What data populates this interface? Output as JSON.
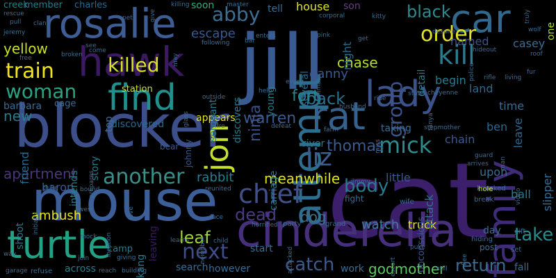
{
  "background": "#000000",
  "palette": [
    "#440154",
    "#3b528b",
    "#21908d",
    "#5dc863",
    "#fde725",
    "#482878",
    "#31688e",
    "#35b779"
  ],
  "words": [
    {
      "text": "cat",
      "color": "#3b1f6b"
    },
    {
      "text": "jill",
      "color": "#3a5a92"
    },
    {
      "text": "blocker",
      "color": "#3c4f8a"
    },
    {
      "text": "mouse",
      "color": "#3d5f99"
    },
    {
      "text": "cinderella",
      "color": "#46307c"
    },
    {
      "text": "rosalie",
      "color": "#3e5d94"
    },
    {
      "text": "hawk",
      "color": "#3b1a63"
    },
    {
      "text": "car",
      "color": "#31688e"
    },
    {
      "text": "family",
      "color": "#3f2c78"
    },
    {
      "text": "turtle",
      "color": "#23a184"
    },
    {
      "text": "find",
      "color": "#21908d"
    },
    {
      "text": "rat",
      "color": "#35618f"
    },
    {
      "text": "lady",
      "color": "#3b528b"
    },
    {
      "text": "attempt",
      "color": "#2f6d8e"
    },
    {
      "text": "jon",
      "color": "#c4df2a"
    },
    {
      "text": "kill",
      "color": "#2c7a8e"
    },
    {
      "text": "order",
      "color": "#e0e32a"
    },
    {
      "text": "train",
      "color": "#f1e51d"
    },
    {
      "text": "woman",
      "color": "#2aa383"
    },
    {
      "text": "killed",
      "color": "#d9e22a"
    },
    {
      "text": "abby",
      "color": "#3e6e92"
    },
    {
      "text": "another",
      "color": "#3b8f8a"
    },
    {
      "text": "mick",
      "color": "#2f8b8d"
    },
    {
      "text": "chief",
      "color": "#42508a"
    },
    {
      "text": "liz",
      "color": "#3a5f90"
    },
    {
      "text": "next",
      "color": "#3e4c88"
    },
    {
      "text": "dead",
      "color": "#4b3b7e"
    },
    {
      "text": "leaf",
      "color": "#9fd43c"
    },
    {
      "text": "catch",
      "color": "#3b5a8e"
    },
    {
      "text": "body",
      "color": "#2a7b8e"
    },
    {
      "text": "take",
      "color": "#2b8b8c"
    },
    {
      "text": "return",
      "color": "#3b6d93"
    },
    {
      "text": "godmother",
      "color": "#5dc863"
    },
    {
      "text": "group",
      "color": "#3b528b"
    },
    {
      "text": "black",
      "color": "#2d8a8d"
    },
    {
      "text": "back",
      "color": "#2b6f8c"
    },
    {
      "text": "ninja",
      "color": "#3a4f86"
    },
    {
      "text": "warren",
      "color": "#3b5a8e"
    },
    {
      "text": "fort",
      "color": "#23898e"
    },
    {
      "text": "thomas",
      "color": "#3b5a8e"
    },
    {
      "text": "apartment",
      "color": "#4a367b"
    },
    {
      "text": "rabbit",
      "color": "#27808e"
    },
    {
      "text": "meanwhile",
      "color": "#dfe318"
    },
    {
      "text": "yellow",
      "color": "#c8e020"
    },
    {
      "text": "new",
      "color": "#2b7b8e"
    },
    {
      "text": "chase",
      "color": "#b6de2b"
    },
    {
      "text": "danny",
      "color": "#3b5a8e"
    },
    {
      "text": "dog",
      "color": "#3a6f8e"
    },
    {
      "text": "watch",
      "color": "#3b7c9c"
    },
    {
      "text": "truck",
      "color": "#e6e419"
    },
    {
      "text": "baron",
      "color": "#3b5a8e"
    },
    {
      "text": "ambush",
      "color": "#e8e419"
    },
    {
      "text": "member",
      "color": "#2a7b8e"
    },
    {
      "text": "charles",
      "color": "#2a6a8e"
    },
    {
      "text": "creek",
      "color": "#2a7b8e"
    },
    {
      "text": "soon",
      "color": "#2cae80"
    },
    {
      "text": "house",
      "color": "#e0e32a"
    },
    {
      "text": "son",
      "color": "#6a3e85"
    },
    {
      "text": "tell",
      "color": "#3b6d93"
    },
    {
      "text": "escape",
      "color": "#3b5a8e"
    },
    {
      "text": "named",
      "color": "#3f508a"
    },
    {
      "text": "casey",
      "color": "#3b6d93"
    },
    {
      "text": "one",
      "color": "#a9db33"
    },
    {
      "text": "night",
      "color": "#2a6a8e"
    },
    {
      "text": "several",
      "color": "#2a6a8e"
    },
    {
      "text": "detail",
      "color": "#2a7b8e"
    },
    {
      "text": "begin",
      "color": "#2a7b8e"
    },
    {
      "text": "land",
      "color": "#2a6a8e"
    },
    {
      "text": "time",
      "color": "#3b6d93"
    },
    {
      "text": "leave",
      "color": "#31688e"
    },
    {
      "text": "ben",
      "color": "#2a6a8e"
    },
    {
      "text": "chain",
      "color": "#3b5a8e"
    },
    {
      "text": "station",
      "color": "#c8e020"
    },
    {
      "text": "cage",
      "color": "#3b6d93"
    },
    {
      "text": "barbara",
      "color": "#3b6d93"
    },
    {
      "text": "friend",
      "color": "#2a6a8e"
    },
    {
      "text": "story",
      "color": "#2a7b8e"
    },
    {
      "text": "discovered",
      "color": "#2a6a8e"
    },
    {
      "text": "appears",
      "color": "#e6e419"
    },
    {
      "text": "sergeant",
      "color": "#2a7b8e"
    },
    {
      "text": "discovers",
      "color": "#2a7b8e"
    },
    {
      "text": "young",
      "color": "#2a7b8e"
    },
    {
      "text": "taking",
      "color": "#3b6d93"
    },
    {
      "text": "river",
      "color": "#2a7b8e"
    },
    {
      "text": "attack",
      "color": "#3b6d93"
    },
    {
      "text": "upon",
      "color": "#3b6d93"
    },
    {
      "text": "slipper",
      "color": "#3b6d93"
    },
    {
      "text": "ball",
      "color": "#2a7b8e"
    },
    {
      "text": "little",
      "color": "#3b5a8e"
    },
    {
      "text": "shoot",
      "color": "#2a7b8e"
    },
    {
      "text": "top",
      "color": "#3b6d93"
    },
    {
      "text": "intends",
      "color": "#2a7b8e"
    },
    {
      "text": "johnny",
      "color": "#3b5a8e"
    },
    {
      "text": "bear",
      "color": "#3b5a8e"
    },
    {
      "text": "leaving",
      "color": "#3b1a63"
    },
    {
      "text": "carriage",
      "color": "#2a7b8e"
    },
    {
      "text": "however",
      "color": "#3b6d93"
    },
    {
      "text": "search",
      "color": "#3b6d93"
    },
    {
      "text": "start",
      "color": "#3b6d93"
    },
    {
      "text": "work",
      "color": "#3b6d93"
    },
    {
      "text": "fall",
      "color": "#3b6d93"
    },
    {
      "text": "day",
      "color": "#3b6d93"
    },
    {
      "text": "post",
      "color": "#3b6d93"
    },
    {
      "text": "across",
      "color": "#2a7b8e"
    },
    {
      "text": "camp",
      "color": "#2a7b8e"
    },
    {
      "text": "kang",
      "color": "#2a7b8e"
    },
    {
      "text": "unconscious",
      "color": "#3b5a8e"
    },
    {
      "text": "fight",
      "color": "#3b6d93"
    },
    {
      "text": "knocked",
      "color": "#3b6d93"
    },
    {
      "text": "break",
      "color": "#3b6d93"
    },
    {
      "text": "hole",
      "color": "#c8e020"
    },
    {
      "text": "gift",
      "color": "#3b6d93"
    },
    {
      "text": "set",
      "color": "#3b6d93"
    },
    {
      "text": "hiding",
      "color": "#3b6d93"
    },
    {
      "text": "wife",
      "color": "#3b6d93"
    },
    {
      "text": "grand",
      "color": "#3b6d93"
    },
    {
      "text": "party",
      "color": "#3b6d93"
    },
    {
      "text": "jimmy",
      "color": "#3b6d93"
    },
    {
      "text": "reunited",
      "color": "#3b6d93"
    },
    {
      "text": "face",
      "color": "#3b6d93"
    },
    {
      "text": "child",
      "color": "#3b6d93"
    },
    {
      "text": "horrified",
      "color": "#3b6d93"
    },
    {
      "text": "attacked",
      "color": "#3b6d93"
    },
    {
      "text": "escort",
      "color": "#3b6d93"
    },
    {
      "text": "puke",
      "color": "#3b6d93"
    },
    {
      "text": "flee",
      "color": "#3b6d93"
    },
    {
      "text": "still",
      "color": "#3b6d93"
    },
    {
      "text": "giving",
      "color": "#3b6d93"
    },
    {
      "text": "reach",
      "color": "#3b6d93"
    },
    {
      "text": "building",
      "color": "#3b6d93"
    },
    {
      "text": "refuse",
      "color": "#3b6d93"
    },
    {
      "text": "garage",
      "color": "#3b6d93"
    },
    {
      "text": "way",
      "color": "#3b6d93"
    },
    {
      "text": "join",
      "color": "#3b6d93"
    },
    {
      "text": "mock",
      "color": "#3b6d93"
    },
    {
      "text": "west",
      "color": "#3b6d93"
    },
    {
      "text": "love",
      "color": "#3b6d93"
    },
    {
      "text": "location",
      "color": "#3b6d93"
    },
    {
      "text": "learns",
      "color": "#3b6d93"
    },
    {
      "text": "neighbor",
      "color": "#3b6d93"
    },
    {
      "text": "duke",
      "color": "#3b6d93"
    },
    {
      "text": "bound",
      "color": "#3b6d93"
    },
    {
      "text": "initially",
      "color": "#3b6d93"
    },
    {
      "text": "prepares",
      "color": "#3b6d93"
    },
    {
      "text": "glass",
      "color": "#3b6d93"
    },
    {
      "text": "outside",
      "color": "#3b6d93"
    },
    {
      "text": "fire",
      "color": "#3b6d93"
    },
    {
      "text": "defeat",
      "color": "#3b6d93"
    },
    {
      "text": "farm",
      "color": "#3b6d93"
    },
    {
      "text": "husband",
      "color": "#3b6d93"
    },
    {
      "text": "ride",
      "color": "#3b6d93"
    },
    {
      "text": "miss",
      "color": "#3b6d93"
    },
    {
      "text": "tanya",
      "color": "#3b6d93"
    },
    {
      "text": "state",
      "color": "#3b6d93"
    },
    {
      "text": "cheyenne",
      "color": "#3b6d93"
    },
    {
      "text": "stepmother",
      "color": "#3b6d93"
    },
    {
      "text": "guard",
      "color": "#3b6d93"
    },
    {
      "text": "arrives",
      "color": "#3b6d93"
    },
    {
      "text": "police",
      "color": "#3b6d93"
    },
    {
      "text": "living",
      "color": "#3b6d93"
    },
    {
      "text": "rifle",
      "color": "#3b6d93"
    },
    {
      "text": "fur",
      "color": "#3b6d93"
    },
    {
      "text": "hideout",
      "color": "#3b6d93"
    },
    {
      "text": "roof",
      "color": "#3b6d93"
    },
    {
      "text": "wolf",
      "color": "#3b6d93"
    },
    {
      "text": "despite",
      "color": "#3b6d93"
    },
    {
      "text": "kitty",
      "color": "#3b6d93"
    },
    {
      "text": "corporal",
      "color": "#3b6d93"
    },
    {
      "text": "pink",
      "color": "#3b6d93"
    },
    {
      "text": "get",
      "color": "#3b6d93"
    },
    {
      "text": "enters",
      "color": "#3b6d93"
    },
    {
      "text": "bar",
      "color": "#3b6d93"
    },
    {
      "text": "every",
      "color": "#3b6d93"
    },
    {
      "text": "animal",
      "color": "#3b6d93"
    },
    {
      "text": "help",
      "color": "#3b6d93"
    },
    {
      "text": "following",
      "color": "#3b6d93"
    },
    {
      "text": "master",
      "color": "#3b6d93"
    },
    {
      "text": "killing",
      "color": "#3b6d93"
    },
    {
      "text": "give",
      "color": "#3b6d93"
    },
    {
      "text": "truly",
      "color": "#3b6d93"
    },
    {
      "text": "clan",
      "color": "#3b6d93"
    },
    {
      "text": "pet",
      "color": "#3b6d93"
    },
    {
      "text": "pull",
      "color": "#3b6d93"
    },
    {
      "text": "jeremy",
      "color": "#3b6d93"
    },
    {
      "text": "rescue",
      "color": "#3b6d93"
    },
    {
      "text": "free",
      "color": "#3b6d93"
    },
    {
      "text": "broken",
      "color": "#3b6d93"
    },
    {
      "text": "come",
      "color": "#3b6d93"
    },
    {
      "text": "see",
      "color": "#3b6d93"
    },
    {
      "text": "may",
      "color": "#3b6d93"
    },
    {
      "text": "man",
      "color": "#3b6d93"
    },
    {
      "text": "video",
      "color": "#3b6d93"
    }
  ]
}
